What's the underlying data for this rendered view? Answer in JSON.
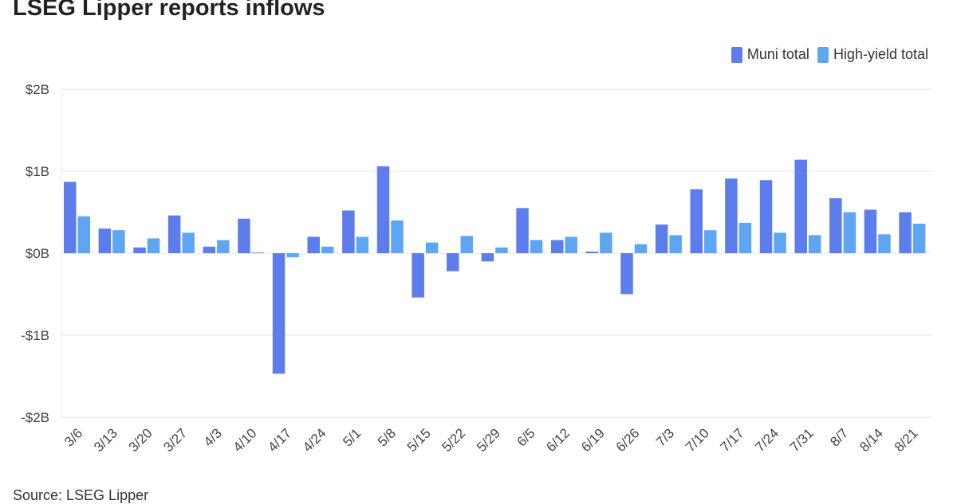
{
  "source": "Source: LSEG Lipper",
  "chart_data": {
    "type": "bar",
    "title": "LSEG Lipper reports inflows",
    "xlabel": "",
    "ylabel": "",
    "ylim": [
      -2,
      2
    ],
    "yticks": [
      2,
      1,
      0,
      -1,
      -2
    ],
    "ytick_labels": [
      "$2B",
      "$1B",
      "$0B",
      "-$1B",
      "-$2B"
    ],
    "grid": true,
    "legend_position": "top-right",
    "categories": [
      "3/6",
      "3/13",
      "3/20",
      "3/27",
      "4/3",
      "4/10",
      "4/17",
      "4/24",
      "5/1",
      "5/8",
      "5/15",
      "5/22",
      "5/29",
      "6/5",
      "6/12",
      "6/19",
      "6/26",
      "7/3",
      "7/10",
      "7/17",
      "7/24",
      "7/31",
      "8/7",
      "8/14",
      "8/21"
    ],
    "series": [
      {
        "name": "Muni total",
        "color": "#5d7ded",
        "values": [
          0.87,
          0.3,
          0.07,
          0.46,
          0.08,
          0.42,
          -1.47,
          0.2,
          0.52,
          1.06,
          -0.54,
          -0.22,
          -0.1,
          0.55,
          0.16,
          0.02,
          -0.5,
          0.35,
          0.78,
          0.91,
          0.89,
          1.14,
          0.67,
          0.53,
          0.5
        ]
      },
      {
        "name": "High-yield total",
        "color": "#5ea6f2",
        "values": [
          0.45,
          0.28,
          0.18,
          0.25,
          0.16,
          0.01,
          -0.05,
          0.08,
          0.2,
          0.4,
          0.13,
          0.21,
          0.07,
          0.16,
          0.2,
          0.25,
          0.11,
          0.22,
          0.28,
          0.37,
          0.25,
          0.22,
          0.5,
          0.23,
          0.36
        ]
      }
    ]
  }
}
